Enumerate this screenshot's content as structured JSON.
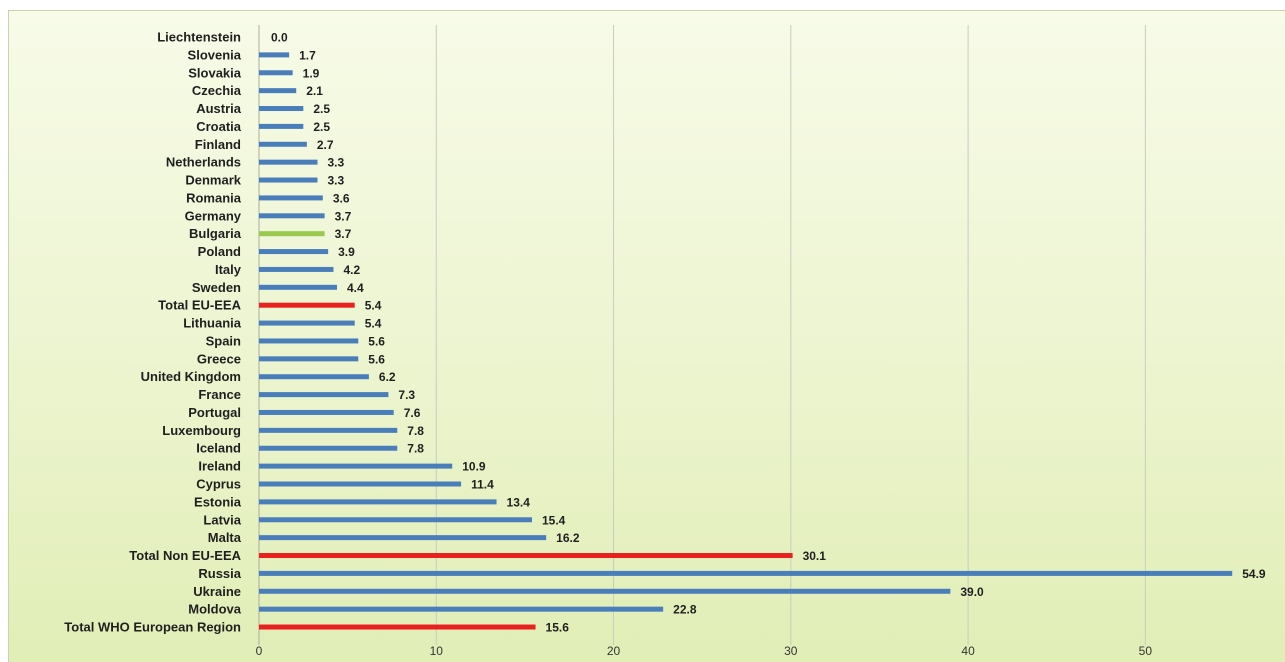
{
  "colors": {
    "default_bar": "#4a7ebb",
    "highlight_bar": "#9bc94f",
    "total_bar": "#e8201e",
    "grid": "#c8ccc0"
  },
  "chart_data": {
    "type": "bar",
    "orientation": "horizontal",
    "title": "",
    "xlabel": "",
    "ylabel": "",
    "xlim": [
      0,
      55
    ],
    "x_ticks": [
      0,
      10,
      20,
      30,
      40,
      50
    ],
    "grid": true,
    "data_labels_decimals": 1,
    "categories": [
      "Liechtenstein",
      "Slovenia",
      "Slovakia",
      "Czechia",
      "Austria",
      "Croatia",
      "Finland",
      "Netherlands",
      "Denmark",
      "Romania",
      "Germany",
      "Bulgaria",
      "Poland",
      "Italy",
      "Sweden",
      "Total EU-EEA",
      "Lithuania",
      "Spain",
      "Greece",
      "United Kingdom",
      "France",
      "Portugal",
      "Luxembourg",
      "Iceland",
      "Ireland",
      "Cyprus",
      "Estonia",
      "Latvia",
      "Malta",
      "Total Non EU-EEA",
      "Russia",
      "Ukraine",
      "Moldova",
      "Total WHO European Region"
    ],
    "values": [
      0.0,
      1.7,
      1.9,
      2.1,
      2.5,
      2.5,
      2.7,
      3.3,
      3.3,
      3.6,
      3.7,
      3.7,
      3.9,
      4.2,
      4.4,
      5.4,
      5.4,
      5.6,
      5.6,
      6.2,
      7.3,
      7.6,
      7.8,
      7.8,
      10.9,
      11.4,
      13.4,
      15.4,
      16.2,
      30.1,
      54.9,
      39.0,
      22.8,
      15.6
    ],
    "bar_colors": [
      "default",
      "default",
      "default",
      "default",
      "default",
      "default",
      "default",
      "default",
      "default",
      "default",
      "default",
      "highlight",
      "default",
      "default",
      "default",
      "total",
      "default",
      "default",
      "default",
      "default",
      "default",
      "default",
      "default",
      "default",
      "default",
      "default",
      "default",
      "default",
      "default",
      "total",
      "default",
      "default",
      "default",
      "total"
    ]
  }
}
